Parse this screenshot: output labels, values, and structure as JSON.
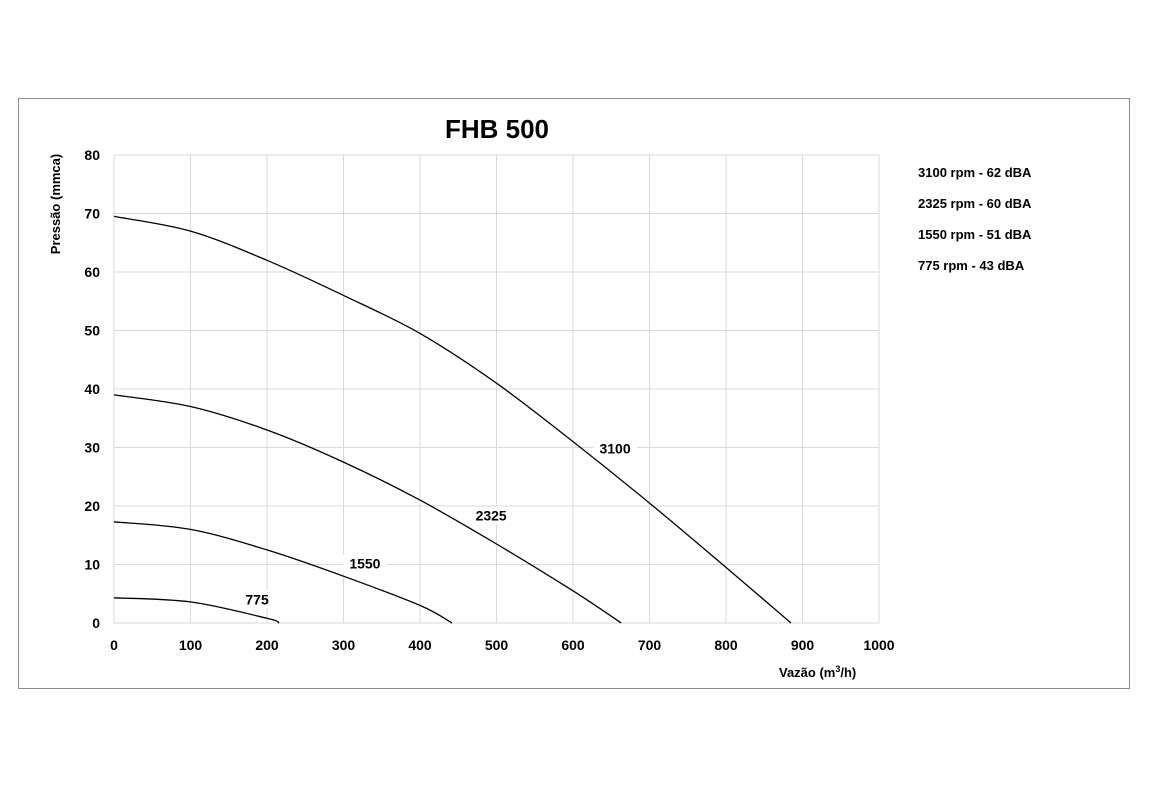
{
  "chart_data": {
    "type": "line",
    "title": "FHB 500",
    "xlabel_main": "Vazão (m",
    "xlabel_sup": "3",
    "xlabel_tail": "/h)",
    "ylabel": "Pressão (mmca)",
    "xlim": [
      0,
      1000
    ],
    "ylim": [
      0,
      80
    ],
    "x_ticks": [
      "0",
      "100",
      "200",
      "300",
      "400",
      "500",
      "600",
      "700",
      "800",
      "900",
      "1000"
    ],
    "y_ticks": [
      "0",
      "10",
      "20",
      "30",
      "40",
      "50",
      "60",
      "70",
      "80"
    ],
    "grid": true,
    "legend_position": "right",
    "legend": [
      "3100 rpm - 62 dBA",
      "2325 rpm - 60 dBA",
      "1550 rpm - 51 dBA",
      "775 rpm - 43 dBA"
    ],
    "series": [
      {
        "name": "3100",
        "x": [
          0,
          100,
          200,
          300,
          400,
          500,
          600,
          700,
          800,
          885
        ],
        "y": [
          69.5,
          67,
          62,
          56,
          49.5,
          41,
          31,
          20.5,
          9.5,
          0
        ]
      },
      {
        "name": "2325",
        "x": [
          0,
          100,
          200,
          300,
          400,
          500,
          600,
          663
        ],
        "y": [
          39,
          37,
          33,
          27.5,
          21,
          13.5,
          5.5,
          0
        ]
      },
      {
        "name": "1550",
        "x": [
          0,
          100,
          200,
          300,
          400,
          442
        ],
        "y": [
          17.3,
          16,
          12.5,
          8,
          3,
          0
        ]
      },
      {
        "name": "775",
        "x": [
          0,
          100,
          200,
          216
        ],
        "y": [
          4.3,
          3.6,
          0.8,
          0
        ]
      }
    ],
    "curve_label_points": [
      {
        "text": "3100",
        "x": 655,
        "y": 29
      },
      {
        "text": "2325",
        "x": 493,
        "y": 17.5
      },
      {
        "text": "1550",
        "x": 328,
        "y": 9.3
      },
      {
        "text": "775",
        "x": 187,
        "y": 3.2
      }
    ]
  }
}
